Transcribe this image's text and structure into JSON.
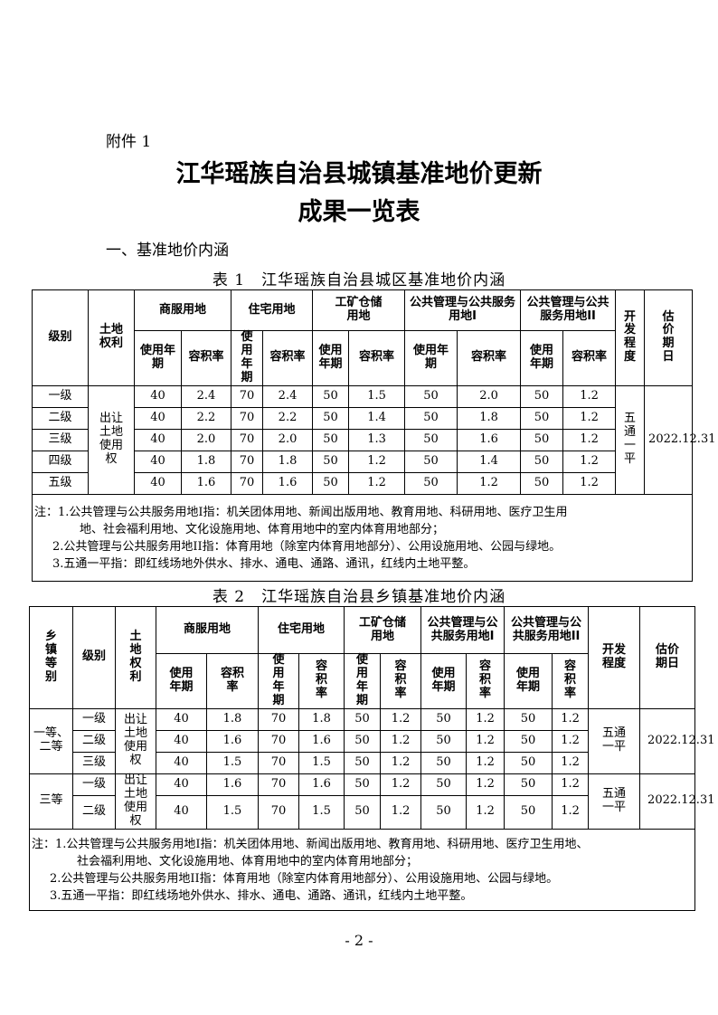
{
  "attachment": "附件 1",
  "title_line1": "江华瑶族自治县城镇基准地价更新",
  "title_line2": "成果一览表",
  "section": "一、基准地价内涵",
  "table1": {
    "caption": "表 1　江华瑶族自治县城区基准地价内涵",
    "headers": {
      "grade": "级别",
      "right": "土地权利",
      "commercial": "商服用地",
      "residential": "住宅用地",
      "industrial": "工矿仓储用地",
      "public1": "公共管理与公共服务用地I",
      "public2": "公共管理与公共服务用地II",
      "dev": "开发程度",
      "date": "估价期日",
      "years": "使用年期",
      "far": "容积率"
    },
    "right_value": "出让土地使用权",
    "dev_value": "五通一平",
    "date_value": "2022.12.31",
    "rows": [
      [
        "一级",
        "40",
        "2.4",
        "70",
        "2.4",
        "50",
        "1.5",
        "50",
        "2.0",
        "50",
        "1.2"
      ],
      [
        "二级",
        "40",
        "2.2",
        "70",
        "2.2",
        "50",
        "1.4",
        "50",
        "1.8",
        "50",
        "1.2"
      ],
      [
        "三级",
        "40",
        "2.0",
        "70",
        "2.0",
        "50",
        "1.3",
        "50",
        "1.6",
        "50",
        "1.2"
      ],
      [
        "四级",
        "40",
        "1.8",
        "70",
        "1.8",
        "50",
        "1.2",
        "50",
        "1.4",
        "50",
        "1.2"
      ],
      [
        "五级",
        "40",
        "1.6",
        "70",
        "1.6",
        "50",
        "1.2",
        "50",
        "1.2",
        "50",
        "1.2"
      ]
    ],
    "notes": [
      "注：1.公共管理与公共服务用地I指：机关团体用地、新闻出版用地、教育用地、科研用地、医疗卫生用",
      "地、社会福利用地、文化设施用地、体育用地中的室内体育用地部分；",
      "2.公共管理与公共服务用地II指：体育用地（除室内体育用地部分）、公用设施用地、公园与绿地。",
      "3.五通一平指：即红线场地外供水、排水、通电、通路、通讯，红线内土地平整。"
    ]
  },
  "table2": {
    "caption": "表 2　江华瑶族自治县乡镇基准地价内涵",
    "headers": {
      "town_grade": "乡镇等别",
      "grade": "级别",
      "right": "土地权利",
      "commercial": "商服用地",
      "residential": "住宅用地",
      "industrial": "工矿仓储用地",
      "public1": "公共管理与公共服务用地I",
      "public2": "公共管理与公共服务用地II",
      "dev": "开发程度",
      "date": "估价期日",
      "years": "使用年期",
      "far": "容积率"
    },
    "groups": [
      {
        "town_grade": "一等、二等",
        "right_value": "出让土地使用权",
        "dev_value": "五通一平",
        "date_value": "2022.12.31",
        "rows": [
          [
            "一级",
            "40",
            "1.8",
            "70",
            "1.8",
            "50",
            "1.2",
            "50",
            "1.2",
            "50",
            "1.2"
          ],
          [
            "二级",
            "40",
            "1.6",
            "70",
            "1.6",
            "50",
            "1.2",
            "50",
            "1.2",
            "50",
            "1.2"
          ],
          [
            "三级",
            "40",
            "1.5",
            "70",
            "1.5",
            "50",
            "1.2",
            "50",
            "1.2",
            "50",
            "1.2"
          ]
        ]
      },
      {
        "town_grade": "三等",
        "right_value": "出让土地使用权",
        "dev_value": "五通一平",
        "date_value": "2022.12.31",
        "rows": [
          [
            "一级",
            "40",
            "1.6",
            "70",
            "1.6",
            "50",
            "1.2",
            "50",
            "1.2",
            "50",
            "1.2"
          ],
          [
            "二级",
            "40",
            "1.5",
            "70",
            "1.5",
            "50",
            "1.2",
            "50",
            "1.2",
            "50",
            "1.2"
          ]
        ]
      }
    ],
    "notes": [
      "注：1.公共管理与公共服务用地I指：机关团体用地、新闻出版用地、教育用地、科研用地、医疗卫生用地、",
      "社会福利用地、文化设施用地、体育用地中的室内体育用地部分；",
      "2.公共管理与公共服务用地II指：体育用地（除室内体育用地部分）、公用设施用地、公园与绿地。",
      "3.五通一平指：即红线场地外供水、排水、通电、通路、通讯，红线内土地平整。"
    ]
  },
  "page_number": "- 2 -"
}
